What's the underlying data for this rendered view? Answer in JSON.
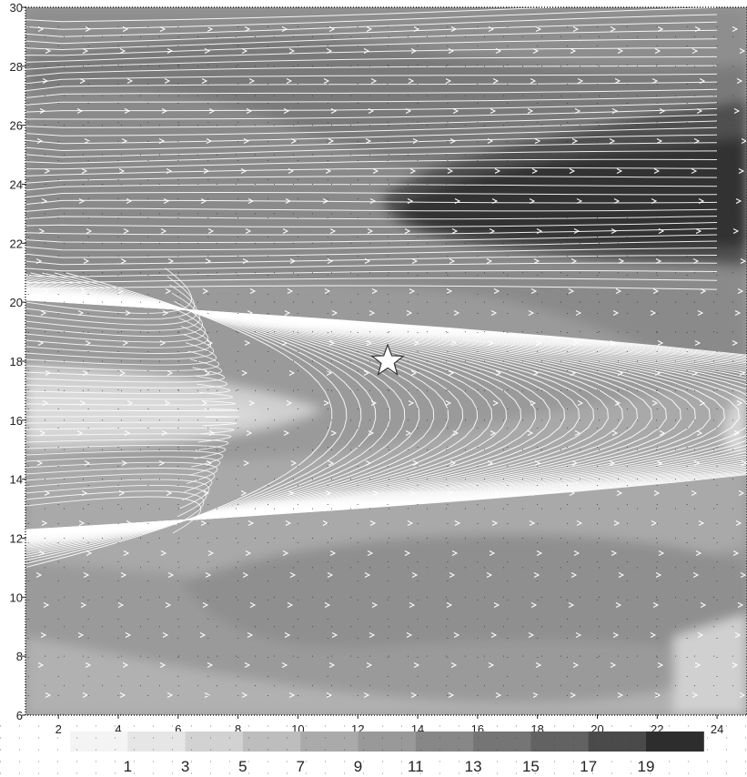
{
  "map": {
    "x_ticks": [
      "2",
      "4",
      "6",
      "8",
      "10",
      "12",
      "14",
      "16",
      "18",
      "20",
      "22",
      "24"
    ],
    "y_ticks": [
      "6",
      "8",
      "10",
      "12",
      "14",
      "16",
      "18",
      "20",
      "22",
      "24",
      "26",
      "28",
      "30"
    ],
    "x_range": [
      0.9,
      25.0
    ],
    "y_range": [
      6,
      30
    ],
    "marker": {
      "icon": "star-icon",
      "x": 13.0,
      "y": 18.0,
      "color": "#ffffff"
    },
    "streamline_color": "#ffffff",
    "grid": "dotted"
  },
  "legend": {
    "labels": [
      "1",
      "3",
      "5",
      "7",
      "9",
      "11",
      "13",
      "15",
      "17",
      "19"
    ],
    "colors": [
      "#f4f4f4",
      "#e6e6e6",
      "#d2d2d2",
      "#bdbdbd",
      "#aaaaaa",
      "#999999",
      "#878787",
      "#757575",
      "#626262",
      "#4a4a4a",
      "#2d2d2d"
    ]
  }
}
